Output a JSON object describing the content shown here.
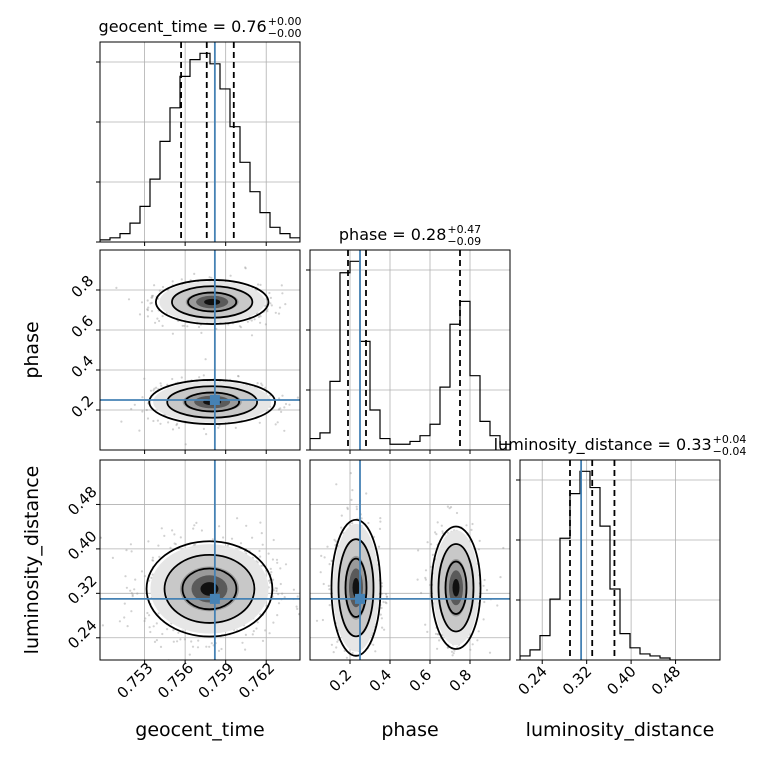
{
  "chart_data": {
    "type": "corner",
    "parameters": [
      "geocent_time",
      "phase",
      "luminosity_distance"
    ],
    "axis_labels": {
      "geocent_time": "geocent_time",
      "phase": "phase",
      "luminosity_distance": "luminosity_distance"
    },
    "truths": {
      "geocent_time": 0.7582,
      "phase": 0.25,
      "luminosity_distance": 0.31
    },
    "truth_color": "#4682b4",
    "ranges": {
      "geocent_time": [
        0.7497,
        0.7645
      ],
      "phase": [
        0.0,
        1.0
      ],
      "luminosity_distance": [
        0.2,
        0.56
      ]
    },
    "ticks": {
      "geocent_time": {
        "values": [
          0.753,
          0.756,
          0.759,
          0.762
        ],
        "labels": [
          "0.753",
          "0.756",
          "0.759",
          "0.762"
        ]
      },
      "phase": {
        "values": [
          0.2,
          0.4,
          0.6,
          0.8
        ],
        "labels": [
          "0.2",
          "0.4",
          "0.6",
          "0.8"
        ]
      },
      "luminosity_distance": {
        "values": [
          0.24,
          0.32,
          0.4,
          0.48
        ],
        "labels": [
          "0.24",
          "0.32",
          "0.40",
          "0.48"
        ]
      }
    },
    "titles": [
      {
        "param": "geocent_time",
        "prefix": "geocent_time = 0.76",
        "sup": "+0.00",
        "sub": "−0.00"
      },
      {
        "param": "phase",
        "prefix": "phase = 0.28",
        "sup": "+0.47",
        "sub": "−0.09"
      },
      {
        "param": "luminosity_distance",
        "prefix": "luminosity_distance = 0.33",
        "sup": "+0.04",
        "sub": "−0.04"
      }
    ],
    "quantiles": {
      "geocent_time": [
        0.7557,
        0.7576,
        0.7596
      ],
      "phase": [
        0.19,
        0.28,
        0.75
      ],
      "luminosity_distance": [
        0.29,
        0.33,
        0.37
      ]
    },
    "histograms": {
      "geocent_time": {
        "edges_range": [
          0.7497,
          0.7645
        ],
        "counts": [
          1,
          2,
          4,
          9,
          17,
          30,
          48,
          64,
          79,
          87,
          90,
          85,
          73,
          55,
          38,
          24,
          14,
          7,
          4,
          2
        ]
      },
      "phase": {
        "edges_range": [
          0.0,
          1.0
        ],
        "counts": [
          4,
          6,
          24,
          62,
          66,
          38,
          14,
          4,
          2,
          2,
          3,
          5,
          9,
          22,
          44,
          52,
          26,
          10,
          5,
          2
        ]
      },
      "luminosity_distance": {
        "edges_range": [
          0.2,
          0.56
        ],
        "counts": [
          2,
          5,
          12,
          30,
          60,
          82,
          93,
          85,
          66,
          35,
          13,
          6,
          3,
          2,
          1,
          0,
          0,
          0,
          0,
          0
        ]
      }
    },
    "grid": true
  }
}
